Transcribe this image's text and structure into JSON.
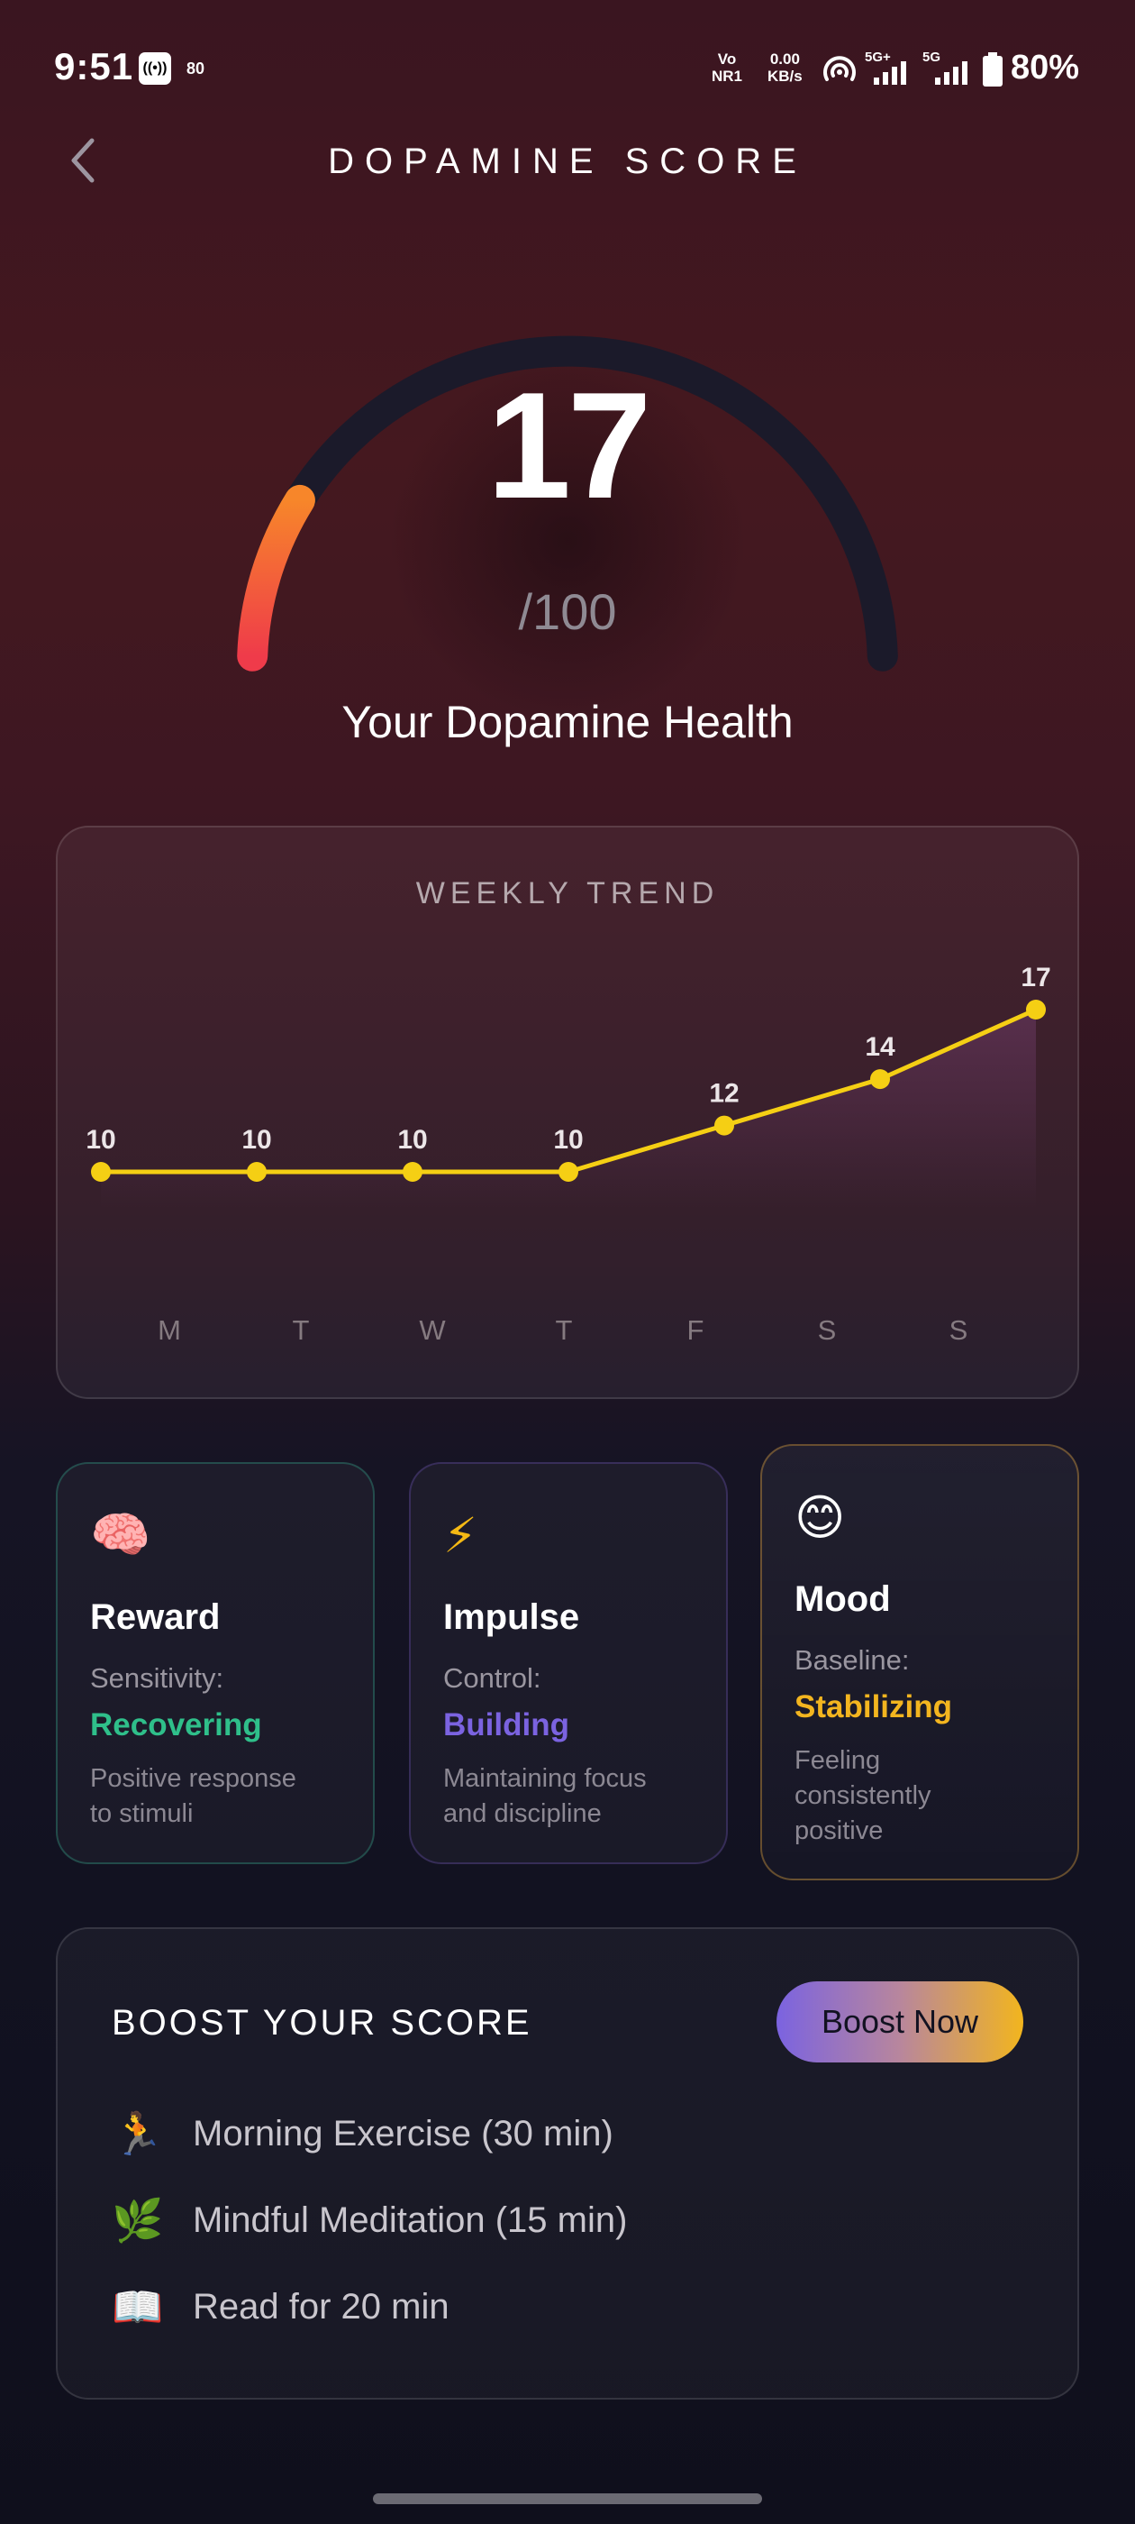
{
  "status_bar": {
    "time": "9:51",
    "notification_count": "80",
    "volte_top": "Vo",
    "volte_bottom": "NR1",
    "speed_top": "0.00",
    "speed_bottom": "KB/s",
    "network_1": "5G+",
    "network_2": "5G",
    "battery": "80%"
  },
  "header": {
    "title": "DOPAMINE SCORE"
  },
  "gauge": {
    "score": "17",
    "max": "/100",
    "score_value": 17,
    "label": "Your Dopamine Health"
  },
  "chart_data": {
    "type": "line",
    "title": "WEEKLY TREND",
    "categories": [
      "M",
      "T",
      "W",
      "T",
      "F",
      "S",
      "S"
    ],
    "values": [
      10,
      10,
      10,
      10,
      12,
      14,
      17
    ],
    "ylim": [
      0,
      20
    ],
    "grid": false,
    "line_color": "#f5cf14"
  },
  "metrics": [
    {
      "emoji": "🧠",
      "icon_name": "brain-icon",
      "title": "Reward",
      "subtitle": "Sensitivity:",
      "status": "Recovering",
      "status_color": "#2fbf8a",
      "description_1": "Positive response",
      "description_2": "to stimuli"
    },
    {
      "emoji": "⚡",
      "icon_name": "lightning-icon",
      "title": "Impulse",
      "subtitle": "Control:",
      "status": "Building",
      "status_color": "#7b63e0",
      "description_1": "Maintaining focus",
      "description_2": "and discipline"
    },
    {
      "emoji": "😊",
      "icon_name": "smile-icon",
      "title": "Mood",
      "subtitle": "Baseline:",
      "status": "Stabilizing",
      "status_color": "#f3b51f",
      "description_1": "Feeling",
      "description_2": "consistently",
      "description_3": "positive"
    }
  ],
  "boost": {
    "title": "BOOST YOUR SCORE",
    "button": "Boost Now",
    "tasks": [
      {
        "emoji": "🏃",
        "icon_name": "running-icon",
        "label": "Morning Exercise (30 min)"
      },
      {
        "emoji": "🌿",
        "icon_name": "leaf-icon",
        "label": "Mindful Meditation (15 min)"
      },
      {
        "emoji": "📖",
        "icon_name": "book-icon",
        "label": "Read for 20 min"
      }
    ]
  }
}
